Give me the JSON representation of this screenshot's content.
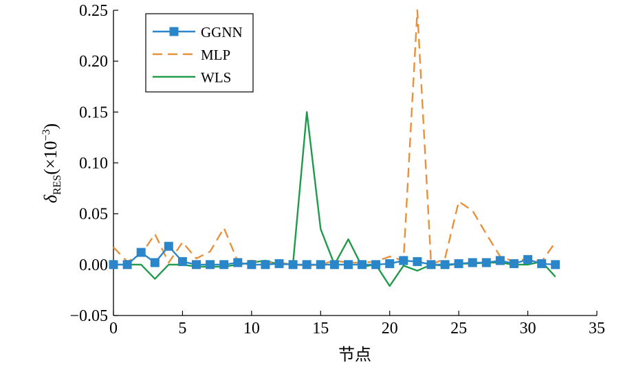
{
  "chart_data": {
    "type": "line",
    "xlabel": "节点",
    "ylabel": {
      "base": "δ",
      "sub": "RES",
      "suffix_open": "(×10",
      "sup": "−3",
      "suffix_close": ")"
    },
    "xlim": [
      0,
      35
    ],
    "ylim": [
      -0.05,
      0.25
    ],
    "xticks": [
      0,
      5,
      10,
      15,
      20,
      25,
      30,
      35
    ],
    "yticks": [
      -0.05,
      0.0,
      0.05,
      0.1,
      0.15,
      0.2,
      0.25
    ],
    "xtick_labels": [
      "0",
      "5",
      "10",
      "15",
      "20",
      "25",
      "30",
      "35"
    ],
    "ytick_labels": [
      "−0.05",
      "0.00",
      "0.05",
      "0.10",
      "0.15",
      "0.20",
      "0.25"
    ],
    "legend_position": "top-left",
    "x": [
      0,
      1,
      2,
      3,
      4,
      5,
      6,
      7,
      8,
      9,
      10,
      11,
      12,
      13,
      14,
      15,
      16,
      17,
      18,
      19,
      20,
      21,
      22,
      23,
      24,
      25,
      26,
      27,
      28,
      29,
      30,
      31,
      32
    ],
    "series": [
      {
        "name": "GGNN",
        "color": "#2a86c8",
        "style": "solid-square-marker",
        "values": [
          0.0,
          0.0,
          0.012,
          0.002,
          0.018,
          0.003,
          0.0,
          0.0,
          0.0,
          0.002,
          0.0,
          0.0,
          0.001,
          0.0,
          0.0,
          0.0,
          0.0,
          0.0,
          0.0,
          0.0,
          0.001,
          0.004,
          0.003,
          0.0,
          0.0,
          0.001,
          0.002,
          0.002,
          0.004,
          0.001,
          0.005,
          0.001,
          0.0
        ]
      },
      {
        "name": "MLP",
        "color": "#e8913a",
        "style": "dashed",
        "values": [
          0.017,
          0.003,
          0.01,
          0.03,
          0.002,
          0.022,
          0.006,
          0.013,
          0.036,
          0.003,
          0.004,
          0.002,
          0.002,
          0.0,
          -0.001,
          0.0,
          0.004,
          0.002,
          0.002,
          0.003,
          0.008,
          0.004,
          0.25,
          0.0,
          0.006,
          0.062,
          0.053,
          0.03,
          0.008,
          0.003,
          0.006,
          0.003,
          0.022
        ]
      },
      {
        "name": "WLS",
        "color": "#1f9a4a",
        "style": "solid",
        "values": [
          0.0,
          0.0,
          0.0,
          -0.014,
          0.0,
          0.0,
          -0.002,
          -0.002,
          -0.002,
          0.0,
          0.002,
          0.004,
          0.0,
          0.001,
          0.15,
          0.035,
          0.0,
          0.025,
          -0.002,
          0.0,
          -0.021,
          -0.001,
          -0.006,
          0.0,
          -0.001,
          0.001,
          0.001,
          0.002,
          0.002,
          0.0,
          0.0,
          0.003,
          -0.012
        ]
      }
    ]
  }
}
